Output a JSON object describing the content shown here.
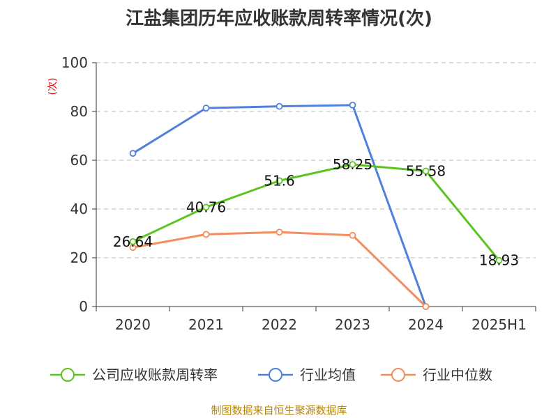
{
  "title": "江盐集团历年应收账款周转率情况(次)",
  "source": "制图数据来自恒生聚源数据库",
  "chart_data": {
    "type": "line",
    "title": "江盐集团历年应收账款周转率情况(次)",
    "ylabel": "(次)",
    "ylim": [
      0,
      100
    ],
    "yticks": [
      "0",
      "20",
      "40",
      "60",
      "80",
      "100"
    ],
    "categories": [
      "2020",
      "2021",
      "2022",
      "2023",
      "2024",
      "2025H1"
    ],
    "grid": true,
    "legend": "bottom",
    "series": [
      {
        "name": "公司应收账款周转率",
        "color": "#5cc421",
        "values": [
          26.64,
          40.76,
          51.6,
          58.25,
          55.58,
          18.93
        ],
        "labels": [
          "26.64",
          "40.76",
          "51.6",
          "58.25",
          "55.58",
          "18.93"
        ]
      },
      {
        "name": "行业均值",
        "color": "#4f80dd",
        "values": [
          62.8,
          81.4,
          82.1,
          82.6,
          0,
          null
        ]
      },
      {
        "name": "行业中位数",
        "color": "#f58c5c",
        "values": [
          24.2,
          29.6,
          30.5,
          29.2,
          0,
          null
        ]
      }
    ]
  }
}
